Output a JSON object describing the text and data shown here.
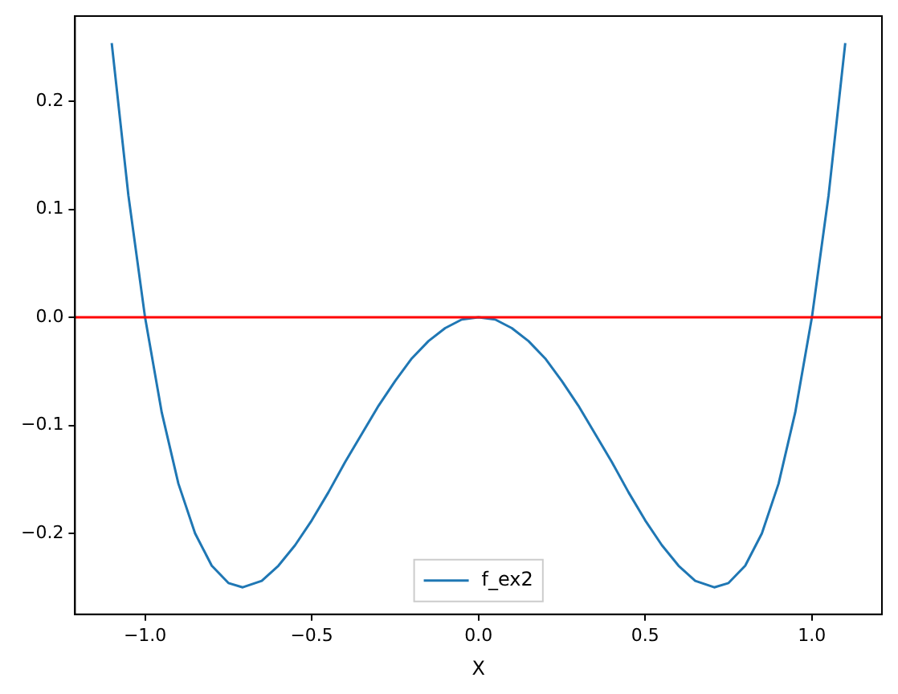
{
  "chart_data": {
    "type": "line",
    "xlabel": "X",
    "x": [
      -1.1,
      -1.05,
      -1.0,
      -0.95,
      -0.9,
      -0.85,
      -0.8,
      -0.75,
      -0.707,
      -0.65,
      -0.6,
      -0.55,
      -0.5,
      -0.45,
      -0.4,
      -0.35,
      -0.3,
      -0.25,
      -0.2,
      -0.15,
      -0.1,
      -0.05,
      0,
      0.05,
      0.1,
      0.15,
      0.2,
      0.25,
      0.3,
      0.35,
      0.4,
      0.45,
      0.5,
      0.55,
      0.6,
      0.65,
      0.707,
      0.75,
      0.8,
      0.85,
      0.9,
      0.95,
      1.0,
      1.05,
      1.1
    ],
    "series": [
      {
        "name": "f_ex2",
        "color": "#1f77b4",
        "values": [
          0.254,
          0.113,
          0,
          -0.088,
          -0.154,
          -0.2,
          -0.23,
          -0.246,
          -0.25,
          -0.244,
          -0.23,
          -0.211,
          -0.188,
          -0.162,
          -0.134,
          -0.108,
          -0.082,
          -0.059,
          -0.038,
          -0.022,
          -0.01,
          -0.002,
          0,
          -0.002,
          -0.01,
          -0.022,
          -0.038,
          -0.059,
          -0.082,
          -0.108,
          -0.134,
          -0.162,
          -0.188,
          -0.211,
          -0.23,
          -0.244,
          -0.25,
          -0.246,
          -0.23,
          -0.2,
          -0.154,
          -0.088,
          0,
          0.113,
          0.254
        ]
      }
    ],
    "xlim": [
      -1.21,
      1.21
    ],
    "ylim": [
      -0.275,
      0.279
    ],
    "xticks": [
      {
        "value": -1,
        "label": "−1.0"
      },
      {
        "value": -0.5,
        "label": "−0.5"
      },
      {
        "value": 0,
        "label": "0.0"
      },
      {
        "value": 0.5,
        "label": "0.5"
      },
      {
        "value": 1,
        "label": "1.0"
      }
    ],
    "yticks": [
      {
        "value": -0.2,
        "label": "−0.2"
      },
      {
        "value": -0.1,
        "label": "−0.1"
      },
      {
        "value": 0,
        "label": "0.0"
      },
      {
        "value": 0.1,
        "label": "0.1"
      },
      {
        "value": 0.2,
        "label": "0.2"
      }
    ],
    "ref_lines": [
      {
        "axis": "y",
        "value": 0,
        "color": "#ff0000"
      }
    ],
    "grid": false,
    "legend": "bottom",
    "marker": "none",
    "line_style": "solid"
  }
}
